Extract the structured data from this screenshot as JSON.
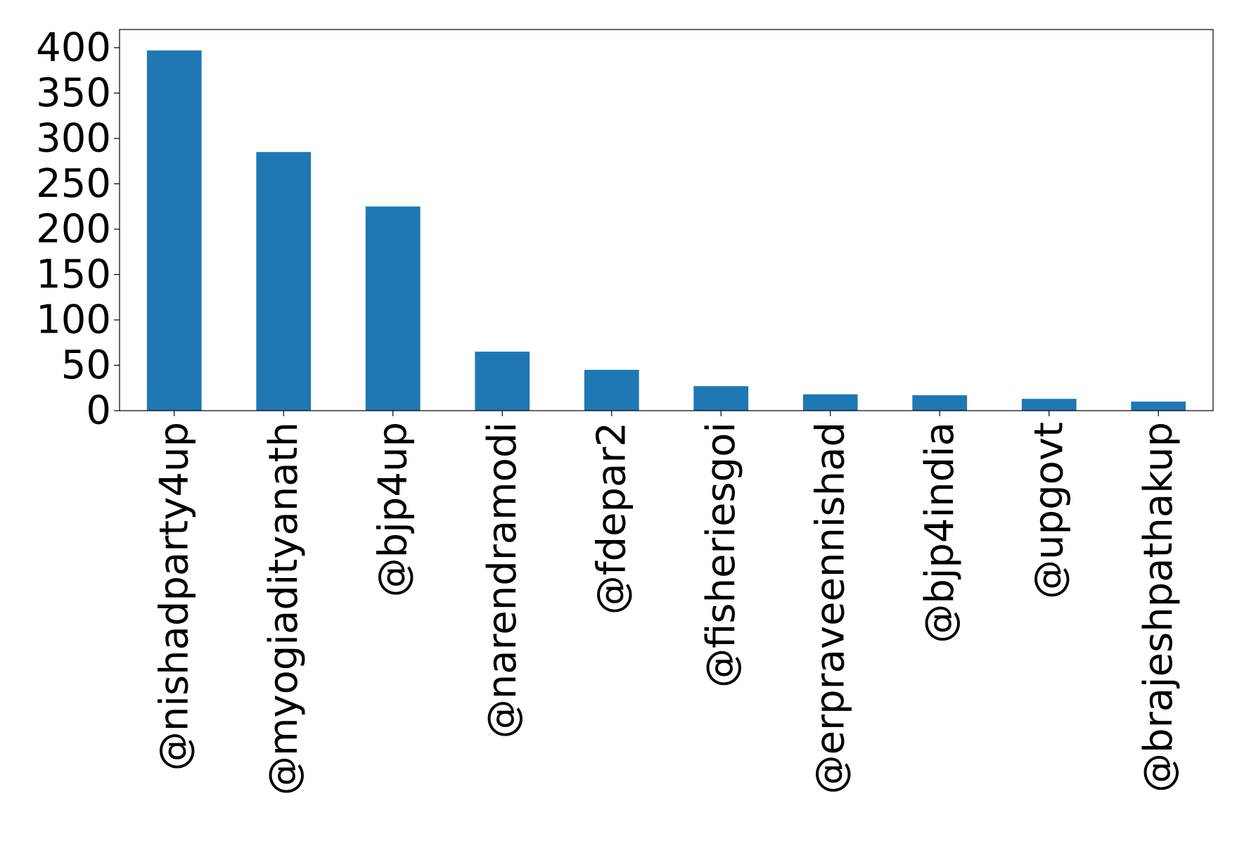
{
  "chart_data": {
    "type": "bar",
    "title": "",
    "xlabel": "",
    "ylabel": "",
    "categories": [
      "@nishadparty4up",
      "@myogiadityanath",
      "@bjp4up",
      "@narendramodi",
      "@fdepar2",
      "@fisheriesgoi",
      "@erpraveennishad",
      "@bjp4india",
      "@upgovt",
      "@brajeshpathakup"
    ],
    "values": [
      397,
      285,
      225,
      65,
      45,
      27,
      18,
      17,
      13,
      10
    ],
    "ylim": [
      0,
      420
    ],
    "yticks": [
      "0",
      "50",
      "100",
      "150",
      "200",
      "250",
      "300",
      "350",
      "400"
    ],
    "bar_color": "#1f77b4",
    "grid": false,
    "legend": "none"
  }
}
